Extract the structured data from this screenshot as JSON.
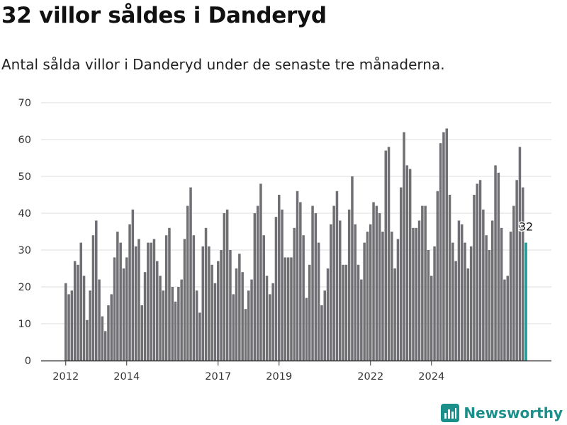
{
  "title": "32 villor såldes i Danderyd",
  "subtitle": "Antal sålda villor i Danderyd under de senaste tre månaderna.",
  "brand": {
    "name": "Newsworthy",
    "icon": "bar-chart-logo-icon",
    "color": "#1b8f8a"
  },
  "colors": {
    "bar": "#706f73",
    "highlight": "#1a9c96",
    "grid": "#dddddd",
    "axis": "#333333"
  },
  "chart_data": {
    "type": "bar",
    "title": "32 villor såldes i Danderyd",
    "xlabel": "",
    "ylabel": "",
    "ylim": [
      0,
      70
    ],
    "yticks": [
      0,
      10,
      20,
      30,
      40,
      50,
      60,
      70
    ],
    "grid": true,
    "xticks": [
      {
        "label": "2012",
        "index": 0
      },
      {
        "label": "2014",
        "index": 20
      },
      {
        "label": "2017",
        "index": 50
      },
      {
        "label": "2019",
        "index": 70
      },
      {
        "label": "2022",
        "index": 100
      },
      {
        "label": "2024",
        "index": 120
      }
    ],
    "values": [
      21,
      18,
      19,
      27,
      26,
      32,
      23,
      11,
      19,
      34,
      38,
      22,
      12,
      8,
      15,
      18,
      28,
      35,
      32,
      25,
      28,
      37,
      41,
      31,
      33,
      15,
      24,
      32,
      32,
      33,
      27,
      23,
      19,
      34,
      36,
      20,
      16,
      20,
      22,
      33,
      42,
      47,
      34,
      19,
      13,
      31,
      36,
      31,
      26,
      21,
      27,
      30,
      40,
      41,
      30,
      18,
      25,
      29,
      24,
      14,
      19,
      22,
      40,
      42,
      48,
      34,
      23,
      18,
      21,
      39,
      45,
      41,
      28,
      28,
      28,
      36,
      46,
      43,
      34,
      17,
      26,
      42,
      40,
      32,
      15,
      19,
      25,
      37,
      42,
      46,
      38,
      26,
      26,
      41,
      50,
      37,
      26,
      22,
      32,
      35,
      37,
      43,
      42,
      40,
      35,
      57,
      58,
      35,
      25,
      33,
      47,
      62,
      53,
      52,
      36,
      36,
      38,
      42,
      42,
      30,
      23,
      31,
      46,
      59,
      62,
      63,
      45,
      32,
      27,
      38,
      37,
      32,
      25,
      31,
      45,
      48,
      49,
      41,
      34,
      30,
      38,
      53,
      51,
      36,
      22,
      23,
      35,
      42,
      49,
      58,
      47,
      32
    ],
    "highlight_last": true,
    "annotation": {
      "label": "32",
      "index": 151
    }
  }
}
